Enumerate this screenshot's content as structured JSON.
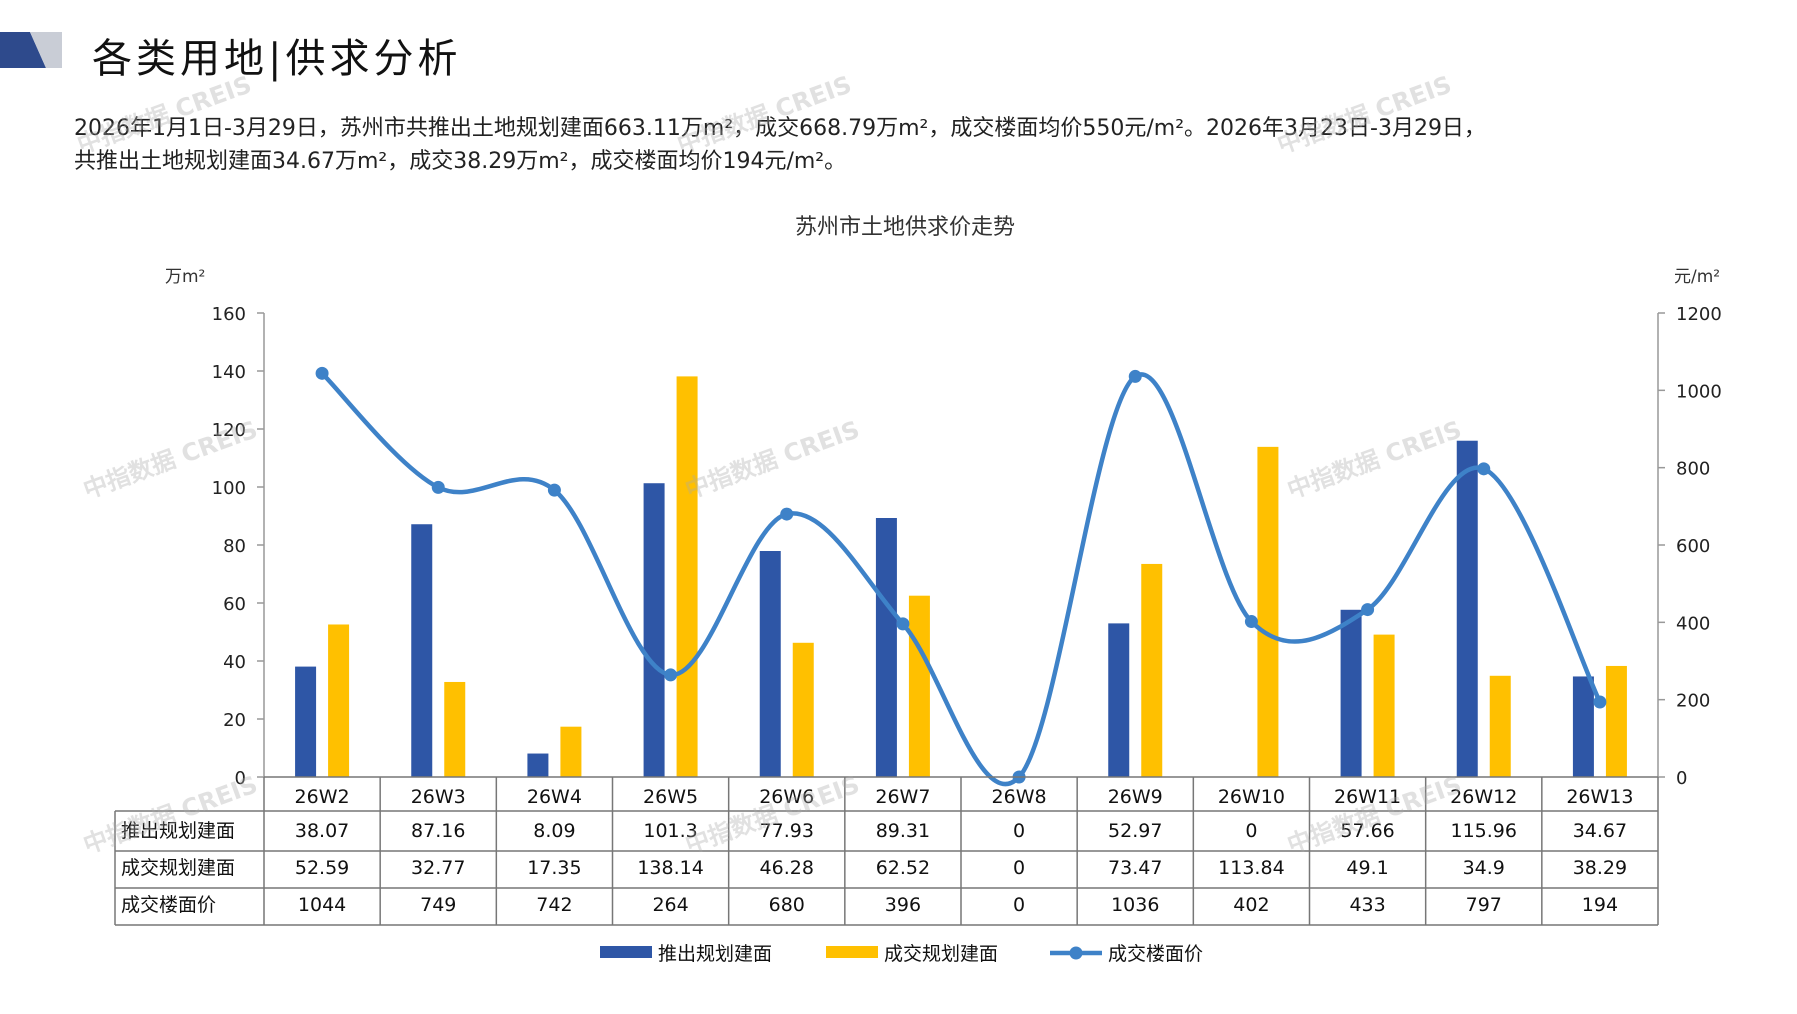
{
  "page": {
    "title": "各类用地|供求分析",
    "summary_line1": "2026年1月1日-3月29日，苏州市共推出土地规划建面663.11万m²，成交668.79万m²，成交楼面均价550元/m²。2026年3月23日-3月29日，",
    "summary_line2": "共推出土地规划建面34.67万m²，成交38.29万m²，成交楼面均价194元/m²。",
    "watermark": "中指数据 CREIS"
  },
  "colors": {
    "supply": "#2E56A6",
    "deal": "#FFC000",
    "price": "#3E82C8",
    "axis": "#999999",
    "header_dark": "#2E4A8C",
    "header_light": "#C9CDD6"
  },
  "chart_data": {
    "type": "bar",
    "title": "苏州市土地供求价走势",
    "y_left_unit": "万m²",
    "y_right_unit": "元/m²",
    "ylim_left": [
      0,
      160
    ],
    "yticks_left": [
      0,
      20,
      40,
      60,
      80,
      100,
      120,
      140,
      160
    ],
    "ylim_right": [
      0,
      1200
    ],
    "yticks_right": [
      0,
      200,
      400,
      600,
      800,
      1000,
      1200
    ],
    "categories": [
      "26W2",
      "26W3",
      "26W4",
      "26W5",
      "26W6",
      "26W7",
      "26W8",
      "26W9",
      "26W10",
      "26W11",
      "26W12",
      "26W13"
    ],
    "series": [
      {
        "name": "推出规划建面",
        "type": "bar",
        "axis": "left",
        "values": [
          38.07,
          87.16,
          8.09,
          101.3,
          77.93,
          89.31,
          0,
          52.97,
          0,
          57.66,
          115.96,
          34.67
        ],
        "labels": [
          "38.07",
          "87.16",
          "8.09",
          "101.3",
          "77.93",
          "89.31",
          "0",
          "52.97",
          "0",
          "57.66",
          "115.96",
          "34.67"
        ]
      },
      {
        "name": "成交规划建面",
        "type": "bar",
        "axis": "left",
        "values": [
          52.59,
          32.77,
          17.35,
          138.14,
          46.28,
          62.52,
          0,
          73.47,
          113.84,
          49.1,
          34.9,
          38.29
        ],
        "labels": [
          "52.59",
          "32.77",
          "17.35",
          "138.14",
          "46.28",
          "62.52",
          "0",
          "73.47",
          "113.84",
          "49.1",
          "34.9",
          "38.29"
        ]
      },
      {
        "name": "成交楼面价",
        "type": "line",
        "axis": "right",
        "values": [
          1044,
          749,
          742,
          264,
          680,
          396,
          0,
          1036,
          402,
          433,
          797,
          194
        ],
        "labels": [
          "1044",
          "749",
          "742",
          "264",
          "680",
          "396",
          "0",
          "1036",
          "402",
          "433",
          "797",
          "194"
        ]
      }
    ],
    "legend": "bottom",
    "grid": false,
    "data_table": true
  }
}
